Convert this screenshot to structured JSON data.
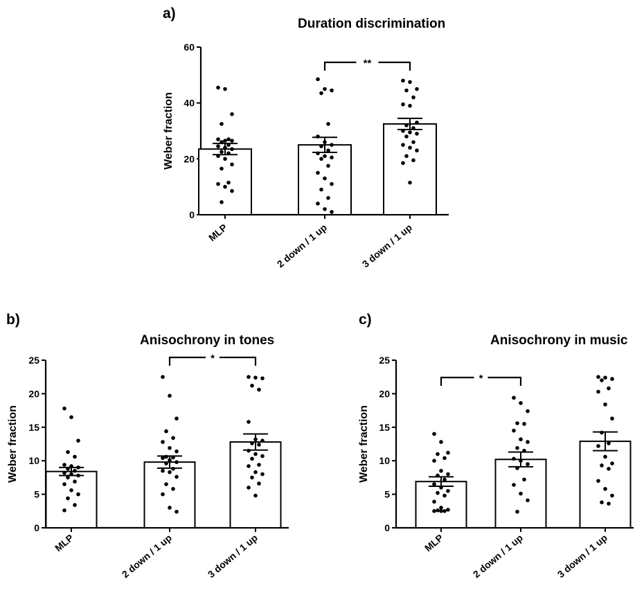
{
  "chart_data": [
    {
      "type": "bar",
      "panel": "a)",
      "title": "Duration discrimination",
      "xlabel": "",
      "ylabel": "Weber fraction",
      "ylim": [
        0,
        60
      ],
      "yticks": [
        0,
        20,
        40,
        60
      ],
      "categories": [
        "MLP",
        "2 down / 1 up",
        "3 down / 1 up"
      ],
      "values": [
        23.5,
        25.0,
        32.5
      ],
      "error": [
        2.0,
        2.7,
        2.0
      ],
      "points": [
        [
          45.5,
          45,
          36,
          32.5,
          27,
          27,
          26.5,
          26.5,
          26,
          25,
          24.5,
          24,
          23.5,
          22.5,
          22,
          21,
          20,
          18,
          16.5,
          11.5,
          11,
          10,
          8.5,
          4.5
        ],
        [
          48.5,
          45,
          44.5,
          43.5,
          32.5,
          28,
          26,
          25,
          24.5,
          23,
          22,
          21,
          20.5,
          20,
          17.5,
          15,
          13,
          11,
          9,
          6,
          4,
          2,
          1
        ],
        [
          48,
          47.5,
          45,
          44.5,
          42,
          39.5,
          39,
          33,
          32,
          31,
          30,
          29.5,
          29,
          28,
          26,
          25,
          24,
          23,
          21,
          19.5,
          18.5,
          11.5
        ]
      ],
      "significance": [
        {
          "from": 1,
          "to": 2,
          "label": "**"
        }
      ]
    },
    {
      "type": "bar",
      "panel": "b)",
      "title": "Anisochrony in tones",
      "xlabel": "",
      "ylabel": "Weber fraction",
      "ylim": [
        0,
        25
      ],
      "yticks": [
        0,
        5,
        10,
        15,
        20,
        25
      ],
      "categories": [
        "MLP",
        "2 down / 1 up",
        "3 down / 1 up"
      ],
      "values": [
        8.4,
        9.8,
        12.8
      ],
      "error": [
        0.6,
        0.9,
        1.2
      ],
      "points": [
        [
          17.8,
          16.5,
          13,
          11.3,
          10.6,
          9.4,
          9.2,
          9,
          8.8,
          8.5,
          8.2,
          8,
          7.8,
          7.5,
          6.9,
          6.5,
          5.6,
          5,
          4.4,
          3.4,
          2.6
        ],
        [
          22.5,
          19.7,
          16.3,
          14.4,
          13.4,
          12.8,
          11.9,
          11.4,
          10.6,
          10.5,
          10.4,
          10.1,
          9.8,
          9.6,
          8.8,
          8.5,
          8.3,
          7.6,
          6.5,
          5.8,
          5.0,
          3.0,
          2.4
        ],
        [
          22.5,
          22.4,
          22.3,
          21.2,
          20.6,
          15.8,
          13.2,
          13.0,
          12.6,
          12.4,
          11.5,
          11,
          10.7,
          10.3,
          9.4,
          9.2,
          8.3,
          8.0,
          7.5,
          6.6,
          6.0,
          4.8
        ]
      ],
      "significance": [
        {
          "from": 1,
          "to": 2,
          "label": "*"
        }
      ]
    },
    {
      "type": "bar",
      "panel": "c)",
      "title": "Anisochrony in music",
      "xlabel": "",
      "ylabel": "Weber fraction",
      "ylim": [
        0,
        25
      ],
      "yticks": [
        0,
        5,
        10,
        15,
        20,
        25
      ],
      "categories": [
        "MLP",
        "2 down / 1 up",
        "3 down / 1 up"
      ],
      "values": [
        6.9,
        10.2,
        12.9
      ],
      "error": [
        0.7,
        1.1,
        1.4
      ],
      "points": [
        [
          14,
          12.8,
          11.2,
          11,
          10.4,
          10,
          8.5,
          8.0,
          7.8,
          7.2,
          6.5,
          6,
          5.5,
          5.2,
          4.8,
          3.9,
          3.0,
          2.7,
          2.6,
          2.5,
          2.5,
          2.5
        ],
        [
          19.4,
          18.6,
          17.4,
          15.6,
          15.5,
          14.5,
          13.2,
          12.8,
          11.9,
          11.5,
          10.3,
          10.0,
          9.5,
          8.9,
          7.2,
          6.4,
          5.1,
          4.1,
          2.4
        ],
        [
          22.5,
          22.4,
          22.2,
          22.0,
          20.8,
          20.3,
          18.4,
          16.3,
          14.2,
          12.6,
          12.2,
          10.6,
          9.6,
          9.3,
          8.8,
          7.0,
          5.8,
          4.8,
          3.8,
          3.6
        ]
      ],
      "significance": [
        {
          "from": 0,
          "to": 1,
          "label": "*"
        }
      ]
    }
  ]
}
